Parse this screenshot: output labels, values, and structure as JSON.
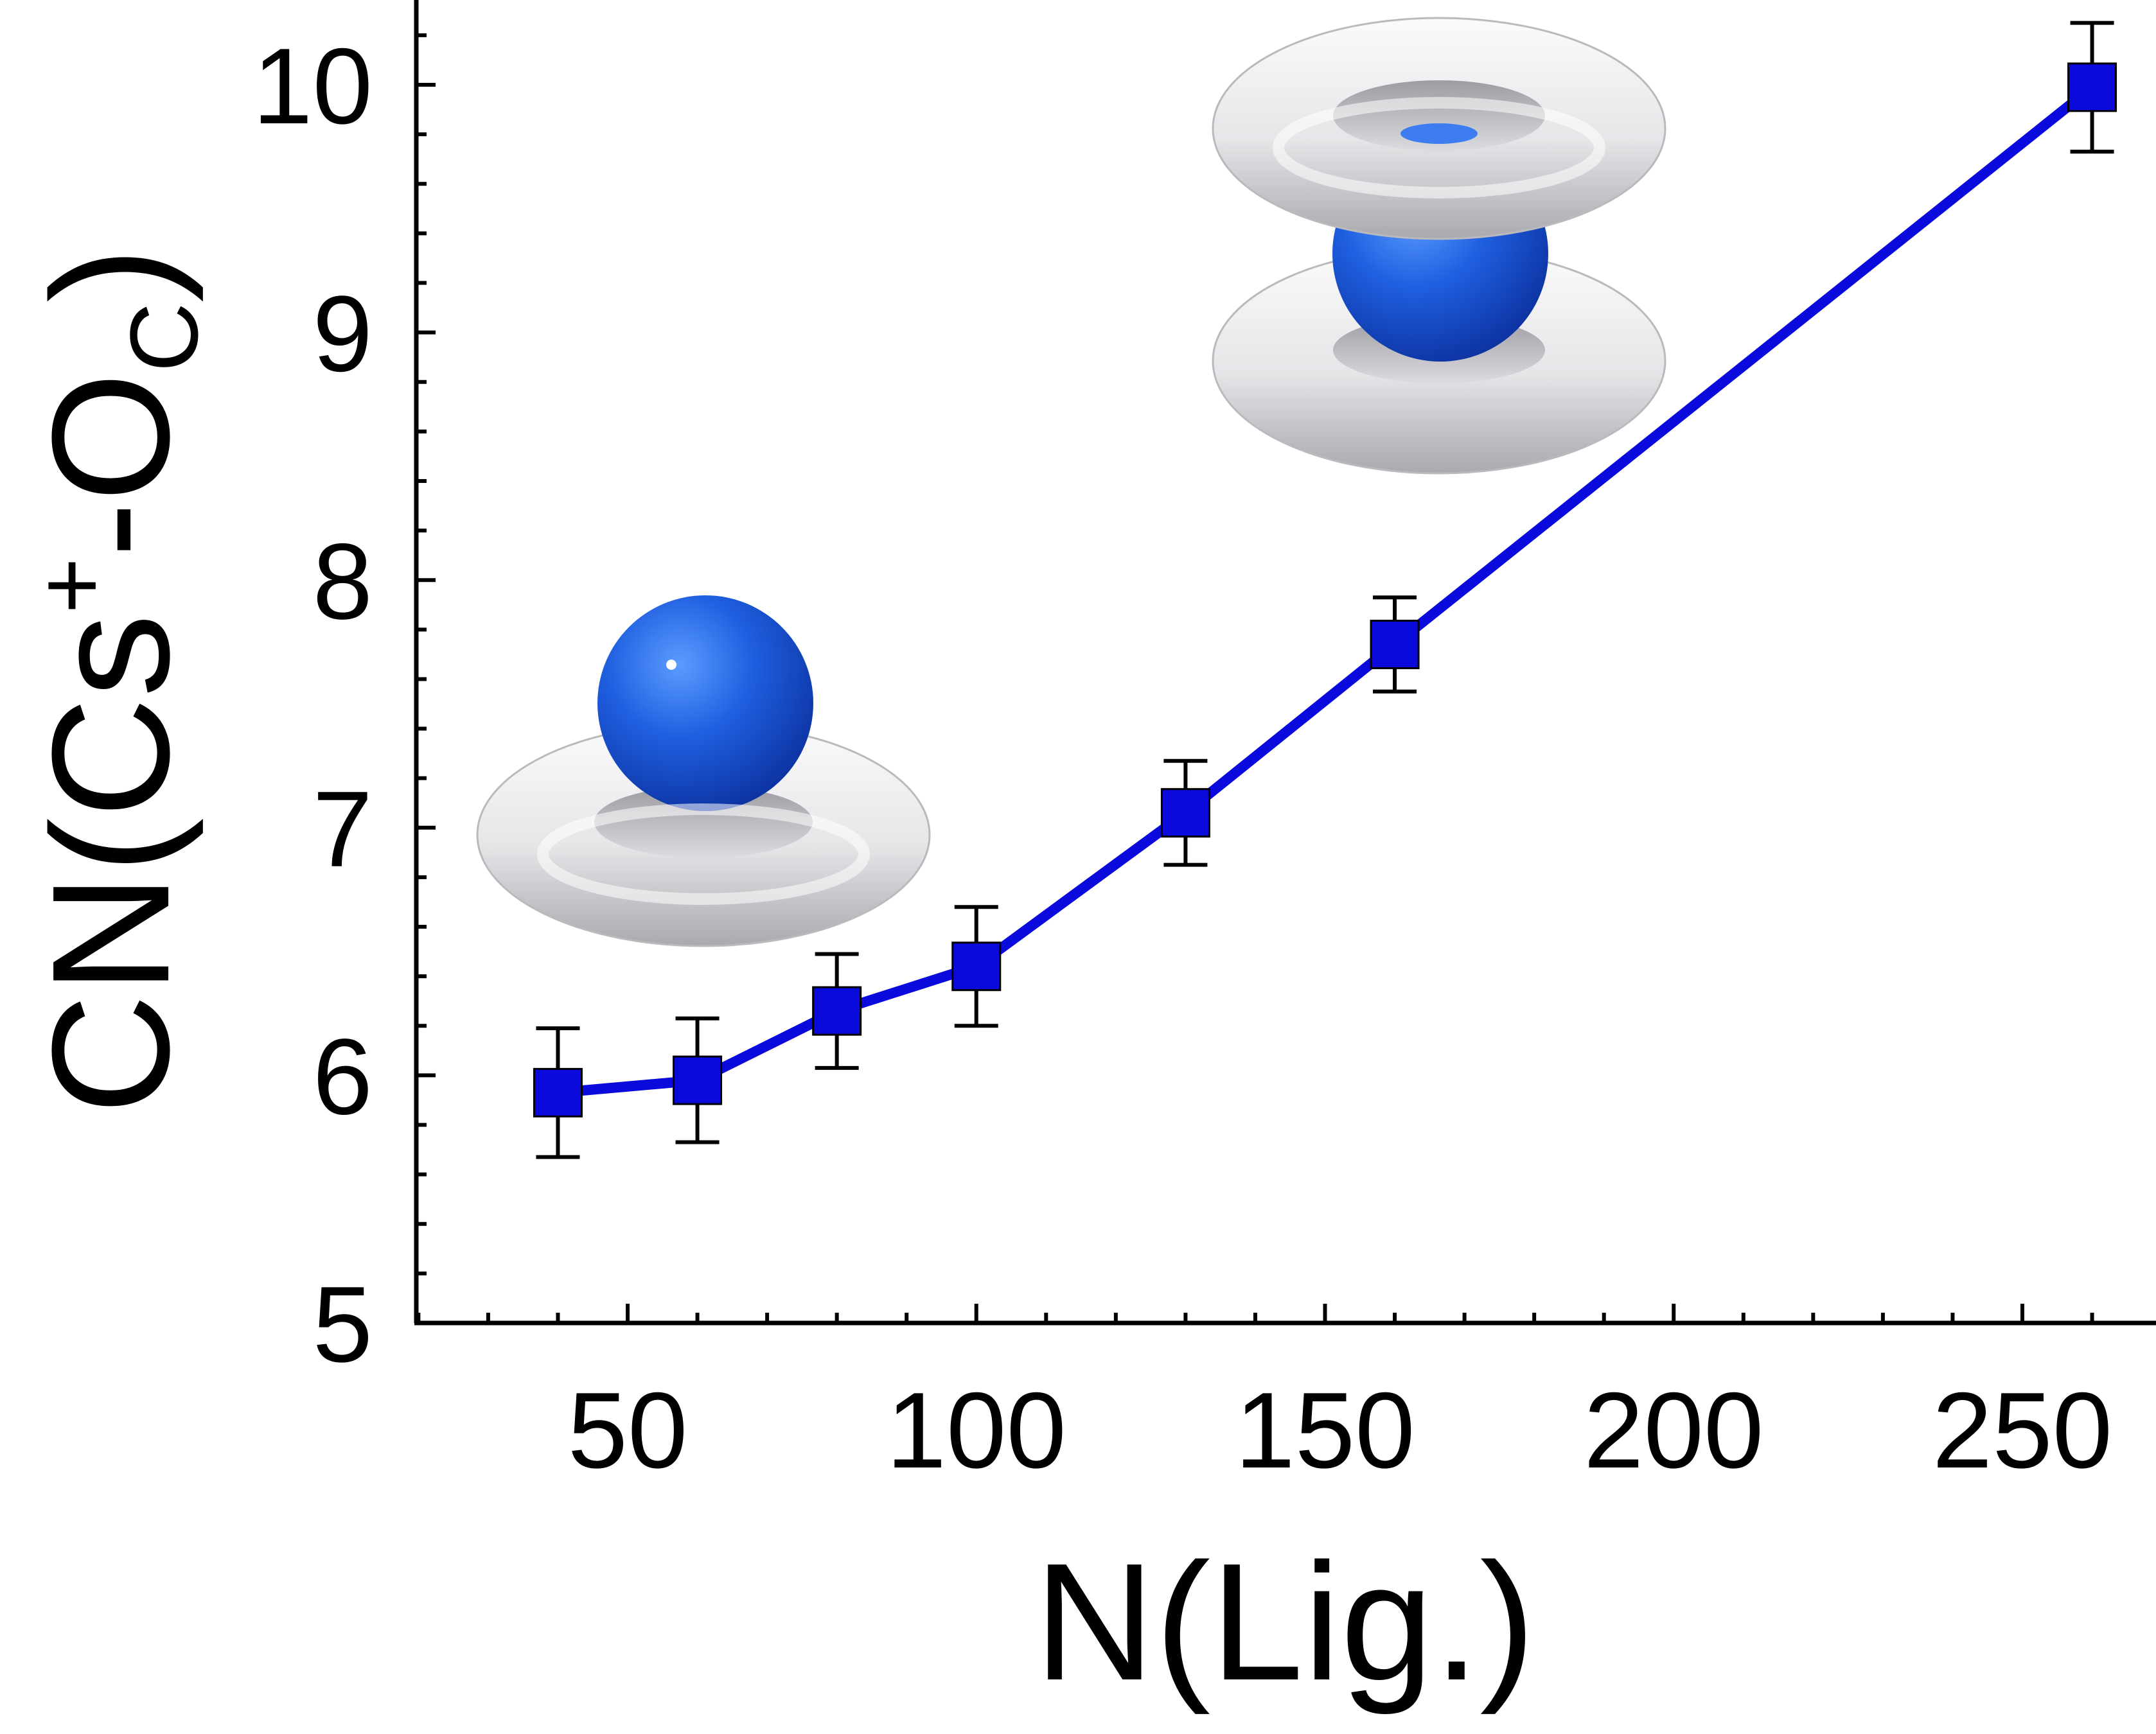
{
  "chart_data": {
    "type": "line",
    "xlabel": "N(Lig.)",
    "ylabel": {
      "base": "CN(Cs",
      "sup": "+",
      "mid": "-O",
      "sub": "C",
      "end": ")"
    },
    "xlim": [
      20,
      270
    ],
    "ylim": [
      5,
      10.35
    ],
    "xticks": [
      50,
      100,
      150,
      200,
      250
    ],
    "yticks": [
      5,
      6,
      7,
      8,
      9,
      10
    ],
    "x_minor_step": 10,
    "y_minor_step": 0.2,
    "grid": false,
    "legend": "none",
    "series": [
      {
        "color": "#0a0adc",
        "marker": "square",
        "points": [
          {
            "x": 40,
            "y": 5.93,
            "err": 0.26
          },
          {
            "x": 60,
            "y": 5.98,
            "err": 0.25
          },
          {
            "x": 80,
            "y": 6.26,
            "err": 0.23
          },
          {
            "x": 100,
            "y": 6.44,
            "err": 0.24
          },
          {
            "x": 130,
            "y": 7.06,
            "err": 0.21
          },
          {
            "x": 160,
            "y": 7.74,
            "err": 0.19
          },
          {
            "x": 260,
            "y": 9.99,
            "err": 0.26
          }
        ]
      }
    ],
    "insets": [
      {
        "name": "single-ring-with-cation",
        "ion_color": "#1f5fe0",
        "ring_color": "#e8e8ea"
      },
      {
        "name": "sandwich-rings-with-cation",
        "ion_color": "#1f5fe0",
        "ring_color": "#e8e8ea"
      }
    ]
  }
}
